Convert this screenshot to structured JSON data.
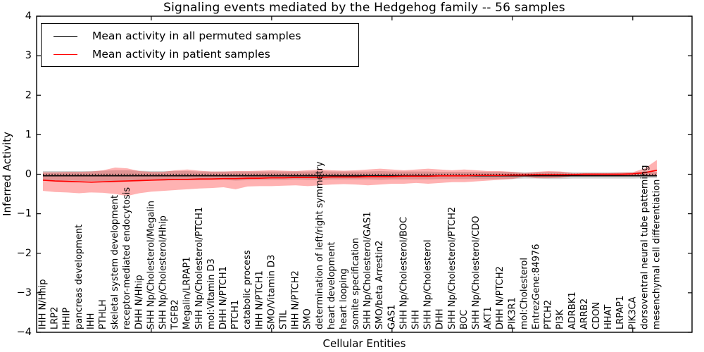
{
  "chart_data": {
    "type": "line",
    "title": "Signaling events mediated by the Hedgehog family -- 56 samples",
    "xlabel": "Cellular Entities",
    "ylabel": "Inferred Activity",
    "samples": 56,
    "ylim": [
      -4,
      4
    ],
    "yticks": [
      -4,
      -3,
      -2,
      -1,
      0,
      1,
      2,
      3,
      4
    ],
    "grid": false,
    "legend_position": "upper left",
    "zero_line_style": "dotted",
    "top_tick_indices": [
      9,
      19,
      29,
      39,
      49
    ],
    "colors": {
      "patient_line": "#ff0000",
      "permuted_line": "#000000",
      "patient_band": "rgba(255,0,0,0.30)",
      "permuted_band": "rgba(128,128,128,0.35)"
    },
    "categories": [
      "IHH N/Hhip",
      "LRP2",
      "HHIP",
      "pancreas development",
      "IHH",
      "PTHLH",
      "skeletal system development",
      "receptor-mediated endocytosis",
      "DHH N/Hhip",
      "SHH Np/Cholesterol/Megalin",
      "SHH Np/Cholesterol/Hhip",
      "TGFB2",
      "Megalin/LRPAP1",
      "SHH Np/Cholesterol/PTCH1",
      "mol:Vitamin D3",
      "DHH N/PTCH1",
      "PTCH1",
      "catabolic process",
      "IHH N/PTCH1",
      "SMO/Vitamin D3",
      "STIL",
      "IHH N/PTCH2",
      "SMO",
      "determination of left/right symmetry",
      "heart development",
      "heart looping",
      "somite specification",
      "SHH Np/Cholesterol/GAS1",
      "SMO/beta Arrestin2",
      "GAS1",
      "SHH Np/Cholesterol/BOC",
      "SHH",
      "SHH Np/Cholesterol",
      "DHH",
      "SHH Np/Cholesterol/PTCH2",
      "BOC",
      "SHH Np/Cholesterol/CDO",
      "AKT1",
      "DHH N/PTCH2",
      "PIK3R1",
      "mol:Cholesterol",
      "EntrezGene:84976",
      "PTCH2",
      "PI3K",
      "ADRBK1",
      "ARRB2",
      "CDON",
      "HHAT",
      "LRPAP1",
      "PIK3CA",
      "dorsoventral neural tube patterning",
      "mesenchymal cell differentiation"
    ],
    "series": [
      {
        "name": "Mean activity in all permuted samples",
        "color": "#000000",
        "band_color": "rgba(128,128,128,0.35)",
        "mean": [
          -0.04,
          -0.04,
          -0.04,
          -0.04,
          -0.04,
          -0.04,
          -0.04,
          -0.04,
          -0.04,
          -0.04,
          -0.04,
          -0.04,
          -0.04,
          -0.04,
          -0.04,
          -0.04,
          -0.04,
          -0.04,
          -0.04,
          -0.04,
          -0.04,
          -0.04,
          -0.04,
          -0.04,
          -0.04,
          -0.04,
          -0.04,
          -0.04,
          -0.04,
          -0.04,
          -0.04,
          -0.04,
          -0.04,
          -0.04,
          -0.04,
          -0.04,
          -0.04,
          -0.04,
          -0.04,
          -0.04,
          -0.04,
          -0.04,
          -0.04,
          -0.04,
          -0.04,
          -0.04,
          -0.04,
          -0.04,
          -0.04,
          -0.04,
          -0.04,
          -0.04
        ],
        "upper": [
          0.08,
          0.08,
          0.08,
          0.08,
          0.08,
          0.09,
          0.1,
          0.1,
          0.09,
          0.08,
          0.08,
          0.08,
          0.08,
          0.07,
          0.07,
          0.07,
          0.07,
          0.07,
          0.07,
          0.07,
          0.07,
          0.07,
          0.07,
          0.08,
          0.07,
          0.07,
          0.07,
          0.07,
          0.08,
          0.07,
          0.07,
          0.07,
          0.07,
          0.06,
          0.06,
          0.06,
          0.06,
          0.06,
          0.06,
          0.06,
          0.05,
          0.05,
          0.06,
          0.06,
          0.05,
          0.05,
          0.05,
          0.05,
          0.05,
          0.05,
          0.06,
          0.06
        ],
        "lower": [
          -0.16,
          -0.16,
          -0.16,
          -0.17,
          -0.17,
          -0.17,
          -0.18,
          -0.18,
          -0.17,
          -0.16,
          -0.16,
          -0.15,
          -0.15,
          -0.15,
          -0.14,
          -0.14,
          -0.16,
          -0.15,
          -0.14,
          -0.14,
          -0.14,
          -0.13,
          -0.14,
          -0.14,
          -0.13,
          -0.13,
          -0.13,
          -0.13,
          -0.14,
          -0.13,
          -0.13,
          -0.13,
          -0.13,
          -0.12,
          -0.12,
          -0.12,
          -0.12,
          -0.12,
          -0.12,
          -0.12,
          -0.11,
          -0.11,
          -0.12,
          -0.12,
          -0.11,
          -0.11,
          -0.11,
          -0.11,
          -0.11,
          -0.11,
          -0.1,
          -0.1
        ]
      },
      {
        "name": "Mean activity in patient samples",
        "color": "#ff0000",
        "band_color": "rgba(255,0,0,0.30)",
        "mean": [
          -0.15,
          -0.17,
          -0.18,
          -0.19,
          -0.2,
          -0.19,
          -0.18,
          -0.17,
          -0.16,
          -0.15,
          -0.14,
          -0.13,
          -0.13,
          -0.12,
          -0.12,
          -0.11,
          -0.11,
          -0.1,
          -0.1,
          -0.09,
          -0.09,
          -0.08,
          -0.08,
          -0.08,
          -0.07,
          -0.07,
          -0.07,
          -0.06,
          -0.06,
          -0.06,
          -0.05,
          -0.05,
          -0.05,
          -0.04,
          -0.04,
          -0.04,
          -0.03,
          -0.03,
          -0.03,
          -0.02,
          -0.02,
          -0.01,
          -0.01,
          -0.01,
          -0.01,
          0.0,
          0.0,
          0.0,
          0.0,
          0.01,
          0.04,
          0.1
        ],
        "upper": [
          0.05,
          0.05,
          0.06,
          0.06,
          0.07,
          0.1,
          0.17,
          0.15,
          0.08,
          0.06,
          0.06,
          0.1,
          0.12,
          0.09,
          0.07,
          0.07,
          0.08,
          0.08,
          0.09,
          0.1,
          0.09,
          0.08,
          0.1,
          0.12,
          0.1,
          0.09,
          0.1,
          0.12,
          0.14,
          0.12,
          0.1,
          0.12,
          0.14,
          0.12,
          0.1,
          0.12,
          0.1,
          0.08,
          0.08,
          0.06,
          0.03,
          0.06,
          0.08,
          0.07,
          0.03,
          0.03,
          0.03,
          0.03,
          0.04,
          0.05,
          0.15,
          0.36
        ],
        "lower": [
          -0.42,
          -0.45,
          -0.46,
          -0.48,
          -0.46,
          -0.47,
          -0.5,
          -0.55,
          -0.48,
          -0.44,
          -0.42,
          -0.4,
          -0.38,
          -0.36,
          -0.35,
          -0.33,
          -0.38,
          -0.31,
          -0.3,
          -0.3,
          -0.29,
          -0.28,
          -0.3,
          -0.28,
          -0.26,
          -0.25,
          -0.26,
          -0.28,
          -0.26,
          -0.24,
          -0.24,
          -0.22,
          -0.24,
          -0.22,
          -0.2,
          -0.2,
          -0.18,
          -0.16,
          -0.14,
          -0.12,
          -0.06,
          -0.1,
          -0.1,
          -0.09,
          -0.05,
          -0.04,
          -0.04,
          -0.04,
          -0.04,
          -0.03,
          -0.03,
          -0.04
        ]
      }
    ]
  }
}
